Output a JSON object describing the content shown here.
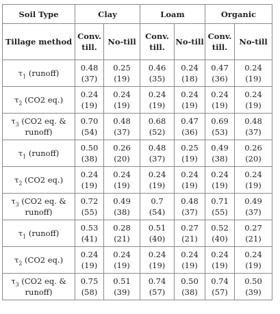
{
  "header": {
    "soil_type": "Soil Type",
    "tillage_method": "Tillage method",
    "soils": [
      "Clay",
      "Loam",
      "Organic"
    ],
    "methods": [
      "Conv. till.",
      "No-till"
    ]
  },
  "rows": [
    {
      "label_pre": "τ",
      "label_sub": "1",
      "label_post": " (runoff)",
      "cells": [
        [
          "0.48",
          "(37)"
        ],
        [
          "0.25",
          "(19)"
        ],
        [
          "0.46",
          "(35)"
        ],
        [
          "0.24",
          "(18)"
        ],
        [
          "0.47",
          "(36)"
        ],
        [
          "0.24",
          "(19)"
        ]
      ]
    },
    {
      "label_pre": "τ",
      "label_sub": "2",
      "label_post": " (CO2 eq.)",
      "cells": [
        [
          "0.24",
          "(19)"
        ],
        [
          "0.24",
          "(19)"
        ],
        [
          "0.24",
          "(19)"
        ],
        [
          "0.24",
          "(19)"
        ],
        [
          "0.24",
          "(19)"
        ],
        [
          "0.24",
          "(19)"
        ]
      ]
    },
    {
      "label_pre": "τ",
      "label_sub": "3",
      "label_post": " (CO2 eq. & runoff)",
      "cells": [
        [
          "0.70",
          "(54)"
        ],
        [
          "0.48",
          "(37)"
        ],
        [
          "0.68",
          "(52)"
        ],
        [
          "0.47",
          "(36)"
        ],
        [
          "0.69",
          "(53)"
        ],
        [
          "0.48",
          "(37)"
        ]
      ]
    },
    {
      "label_pre": "τ",
      "label_sub": "1",
      "label_post": " (runoff)",
      "cells": [
        [
          "0.50",
          "(38)"
        ],
        [
          "0.26",
          "(20)"
        ],
        [
          "0.48",
          "(37)"
        ],
        [
          "0.25",
          "(19)"
        ],
        [
          "0.49",
          "(38)"
        ],
        [
          "0.26",
          "(20)"
        ]
      ]
    },
    {
      "label_pre": "τ",
      "label_sub": "2",
      "label_post": " (CO2 eq.)",
      "cells": [
        [
          "0.24",
          "(19)"
        ],
        [
          "0.24",
          "(19)"
        ],
        [
          "0.24",
          "(19)"
        ],
        [
          "0.24",
          "(19)"
        ],
        [
          "0.24",
          "(19)"
        ],
        [
          "0.24",
          "(19)"
        ]
      ]
    },
    {
      "label_pre": "τ",
      "label_sub": "3",
      "label_post": " (CO2 eq. & runoff)",
      "cells": [
        [
          "0.72",
          "(55)"
        ],
        [
          "0.49",
          "(38)"
        ],
        [
          "0.7",
          "(54)"
        ],
        [
          "0.48",
          "(37)"
        ],
        [
          "0.71",
          "(55)"
        ],
        [
          "0.49",
          "(37)"
        ]
      ]
    },
    {
      "label_pre": "τ",
      "label_sub": "1",
      "label_post": " (runoff)",
      "cells": [
        [
          "0.53",
          "(41)"
        ],
        [
          "0.28",
          "(21)"
        ],
        [
          "0.51",
          "(40)"
        ],
        [
          "0.27",
          "(21)"
        ],
        [
          "0.52",
          "(40)"
        ],
        [
          "0.27",
          "(21)"
        ]
      ]
    },
    {
      "label_pre": "τ",
      "label_sub": "2",
      "label_post": " (CO2 eq.)",
      "cells": [
        [
          "0.24",
          "(19)"
        ],
        [
          "0.24",
          "(19)"
        ],
        [
          "0.24",
          "(19)"
        ],
        [
          "0.24",
          "(19)"
        ],
        [
          "0.24",
          "(19)"
        ],
        [
          "0.24",
          "(19)"
        ]
      ]
    },
    {
      "label_pre": "τ",
      "label_sub": "3",
      "label_post": " (CO2 eq. & runoff)",
      "cells": [
        [
          "0.75",
          "(58)"
        ],
        [
          "0.51",
          "(39)"
        ],
        [
          "0.74",
          "(57)"
        ],
        [
          "0.50",
          "(38)"
        ],
        [
          "0.74",
          "(57)"
        ],
        [
          "0.50",
          "(39)"
        ]
      ]
    }
  ]
}
